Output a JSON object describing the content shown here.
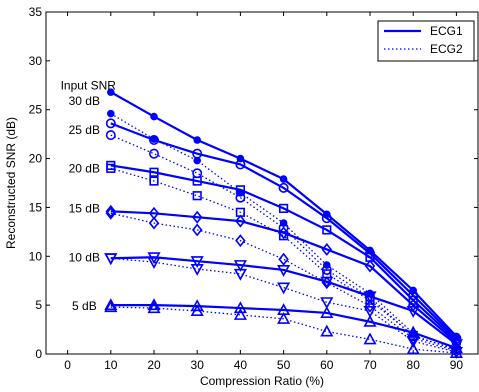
{
  "chart_data": {
    "type": "line",
    "xlabel": "Compression Ratio (%)",
    "ylabel": "Reconstructed SNR (dB)",
    "xlim": [
      -5,
      95
    ],
    "ylim": [
      0,
      35
    ],
    "xticks": [
      0,
      10,
      20,
      30,
      40,
      50,
      60,
      70,
      80,
      90
    ],
    "yticks": [
      0,
      5,
      10,
      15,
      20,
      25,
      30,
      35
    ],
    "grid": false,
    "legend": {
      "position": "top-right",
      "entries": [
        "ECG1",
        "ECG2"
      ]
    },
    "colors": {
      "series": "#0000ff",
      "axes": "#000000"
    },
    "annotations": [
      {
        "text": "Input SNR",
        "x": 0,
        "y": 27.5
      },
      {
        "text": "30 dB",
        "x": 0,
        "y": 25.9
      },
      {
        "text": "25 dB",
        "x": 0,
        "y": 22.9
      },
      {
        "text": "20 dB",
        "x": 0,
        "y": 19.0
      },
      {
        "text": "15 dB",
        "x": 0,
        "y": 14.9
      },
      {
        "text": "10 dB",
        "x": 0,
        "y": 9.9
      },
      {
        "text": "5 dB",
        "x": 0.8,
        "y": 4.9
      }
    ],
    "x": [
      10,
      20,
      30,
      40,
      50,
      60,
      70,
      80,
      90
    ],
    "series": [
      {
        "name": "ECG1",
        "input": "30 dB",
        "marker": "dot",
        "style": "solid",
        "values": [
          26.8,
          24.3,
          21.9,
          20.0,
          17.9,
          14.3,
          10.6,
          6.5,
          1.8
        ]
      },
      {
        "name": "ECG2",
        "input": "30 dB",
        "marker": "dot",
        "style": "dotted",
        "values": [
          24.6,
          22.0,
          19.8,
          16.5,
          13.4,
          9.1,
          6.2,
          2.1,
          0.7
        ]
      },
      {
        "name": "ECG1",
        "input": "25 dB",
        "marker": "circle",
        "style": "solid",
        "values": [
          23.6,
          21.9,
          20.5,
          19.4,
          17.0,
          13.9,
          10.3,
          6.0,
          1.6
        ]
      },
      {
        "name": "ECG2",
        "input": "25 dB",
        "marker": "circle",
        "style": "dotted",
        "values": [
          22.4,
          20.5,
          18.5,
          16.0,
          12.9,
          8.6,
          5.8,
          1.8,
          0.5
        ]
      },
      {
        "name": "ECG1",
        "input": "20 dB",
        "marker": "square",
        "style": "solid",
        "values": [
          19.3,
          18.6,
          17.7,
          16.8,
          14.9,
          12.7,
          9.9,
          5.5,
          1.4
        ]
      },
      {
        "name": "ECG2",
        "input": "20 dB",
        "marker": "square",
        "style": "dotted",
        "values": [
          19.0,
          17.7,
          16.2,
          14.5,
          12.1,
          8.2,
          5.5,
          1.9,
          0.4
        ]
      },
      {
        "name": "ECG1",
        "input": "15 dB",
        "marker": "diamond",
        "style": "solid",
        "values": [
          14.6,
          14.4,
          14.0,
          13.6,
          12.4,
          10.7,
          9.0,
          5.0,
          1.2
        ]
      },
      {
        "name": "ECG2",
        "input": "15 dB",
        "marker": "diamond",
        "style": "dotted",
        "values": [
          14.4,
          13.4,
          12.7,
          11.6,
          9.7,
          7.3,
          4.9,
          1.6,
          0.3
        ]
      },
      {
        "name": "ECG1",
        "input": "10 dB",
        "marker": "triangle-down",
        "style": "solid",
        "values": [
          9.8,
          9.9,
          9.5,
          9.1,
          8.6,
          7.4,
          5.9,
          4.4,
          1.0
        ]
      },
      {
        "name": "ECG2",
        "input": "10 dB",
        "marker": "triangle-down",
        "style": "dotted",
        "values": [
          9.8,
          9.4,
          8.7,
          8.2,
          6.8,
          5.3,
          4.4,
          1.3,
          0.2
        ]
      },
      {
        "name": "ECG1",
        "input": "5 dB",
        "marker": "triangle-up",
        "style": "solid",
        "values": [
          5.0,
          5.0,
          4.9,
          4.7,
          4.5,
          4.2,
          3.3,
          2.2,
          0.6
        ]
      },
      {
        "name": "ECG2",
        "input": "5 dB",
        "marker": "triangle-up",
        "style": "dotted",
        "values": [
          4.8,
          4.7,
          4.4,
          4.0,
          3.6,
          2.3,
          1.5,
          0.5,
          0.1
        ]
      }
    ]
  }
}
